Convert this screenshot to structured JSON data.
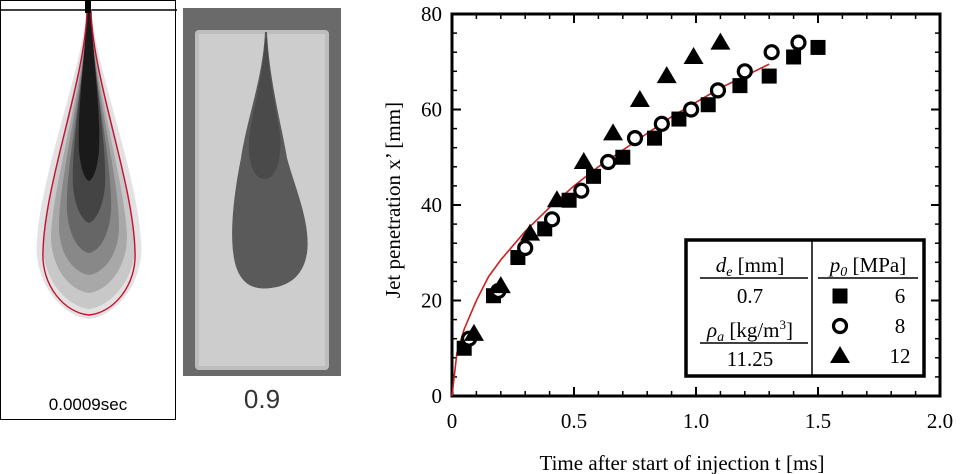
{
  "left_panels": {
    "simulation_caption": "0.0009sec",
    "photo_caption": "0.9"
  },
  "chart_data": {
    "type": "scatter",
    "xlabel": "Time after start of injection t [ms]",
    "ylabel": "Jet penetration  x’  [mm]",
    "xlim": [
      0,
      2.0
    ],
    "ylim": [
      0,
      80
    ],
    "xticks": [
      "0",
      "0.5",
      "1.0",
      "1.5",
      "2.0"
    ],
    "yticks": [
      "0",
      "20",
      "40",
      "60",
      "80"
    ],
    "grid": false,
    "series": [
      {
        "name": "6",
        "marker": "square",
        "x": [
          0.05,
          0.17,
          0.27,
          0.38,
          0.48,
          0.58,
          0.7,
          0.83,
          0.93,
          1.05,
          1.18,
          1.3,
          1.4,
          1.5
        ],
        "y": [
          10,
          21,
          29,
          35,
          41,
          46,
          50,
          54,
          58,
          61,
          65,
          67,
          71,
          73
        ]
      },
      {
        "name": "8",
        "marker": "circle",
        "x": [
          0.07,
          0.19,
          0.3,
          0.41,
          0.53,
          0.64,
          0.75,
          0.86,
          0.98,
          1.09,
          1.2,
          1.31,
          1.42
        ],
        "y": [
          12,
          22,
          31,
          37,
          43,
          49,
          54,
          57,
          60,
          64,
          68,
          72,
          74
        ]
      },
      {
        "name": "12",
        "marker": "triangle",
        "x": [
          0.09,
          0.2,
          0.32,
          0.43,
          0.54,
          0.66,
          0.77,
          0.88,
          0.99,
          1.1
        ],
        "y": [
          13,
          23,
          34,
          41,
          49,
          55,
          62,
          67,
          71,
          74
        ]
      }
    ],
    "model_curve": {
      "color": "#cc2222",
      "x": [
        0.0,
        0.02,
        0.05,
        0.1,
        0.15,
        0.2,
        0.3,
        0.4,
        0.5,
        0.6,
        0.7,
        0.8,
        0.9,
        1.0,
        1.1,
        1.2,
        1.3
      ],
      "y": [
        0,
        9,
        14,
        20,
        25,
        28.5,
        34.5,
        39.5,
        44,
        48,
        51.5,
        55,
        58.5,
        61.5,
        64.5,
        67,
        69.5
      ]
    },
    "legend": {
      "position": "bottom-right",
      "de_label": "d",
      "de_sub": "e",
      "de_unit": " [mm]",
      "de_value": "0.7",
      "rho_label": "ρ",
      "rho_sub": "a",
      "rho_unit": " [kg/m",
      "rho_unit_sup": "3",
      "rho_unit_end": "]",
      "rho_value": "11.25",
      "p_label": "p",
      "p_sub": "0",
      "p_unit": " [MPa]"
    }
  }
}
